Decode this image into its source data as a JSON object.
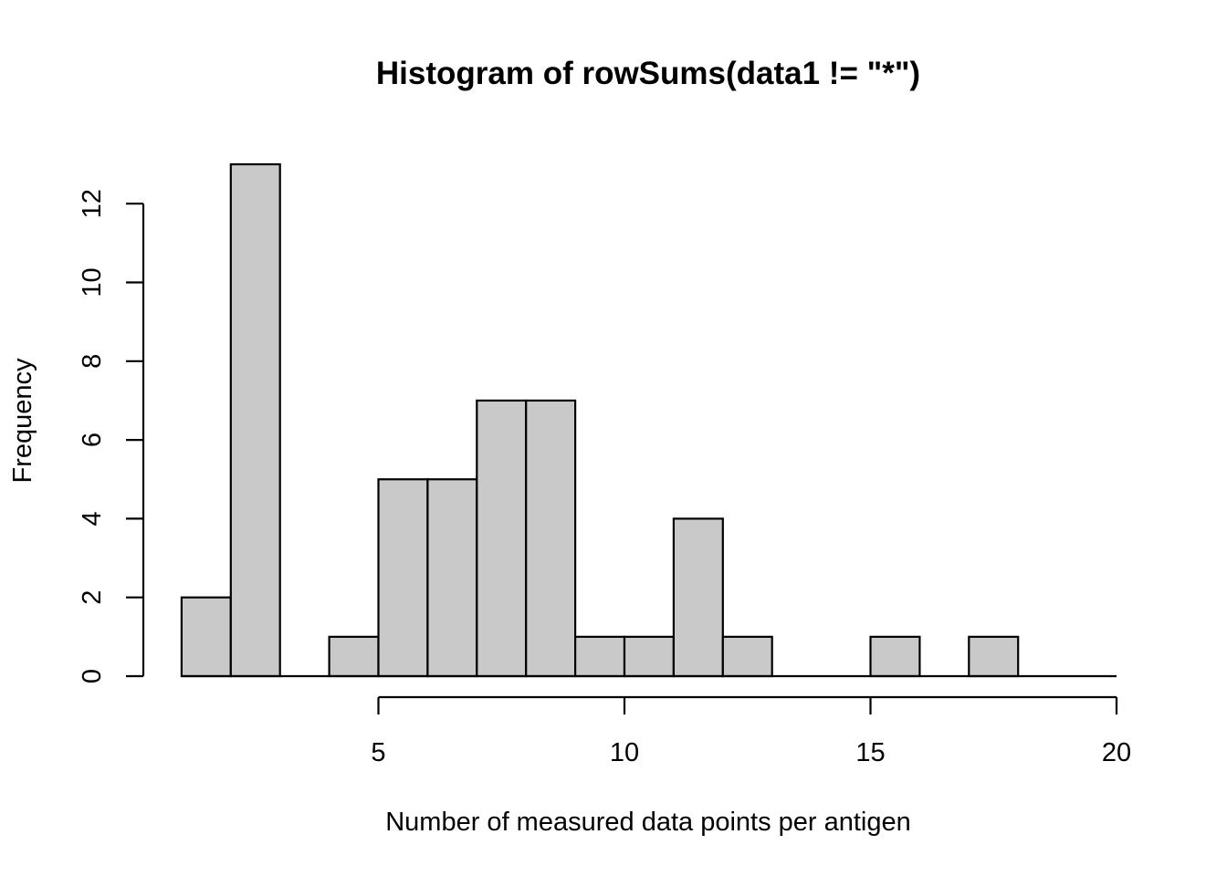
{
  "chart_data": {
    "type": "bar",
    "title": "Histogram of rowSums(data1 != \"*\")",
    "xlabel": "Number of measured data points per antigen",
    "ylabel": "Frequency",
    "bin_edges": [
      1,
      2,
      3,
      4,
      5,
      6,
      7,
      8,
      9,
      10,
      11,
      12,
      13,
      14,
      15,
      16,
      17,
      18,
      19,
      20
    ],
    "values": [
      2,
      13,
      0,
      1,
      5,
      5,
      7,
      7,
      1,
      1,
      4,
      1,
      0,
      0,
      1,
      0,
      1,
      0,
      0
    ],
    "x_ticks": [
      5,
      10,
      15,
      20
    ],
    "y_ticks": [
      0,
      2,
      4,
      6,
      8,
      10,
      12
    ],
    "xlim": [
      1,
      20
    ],
    "ylim": [
      0,
      13
    ],
    "grid": false,
    "colors": {
      "bar_fill": "#c9c9c9",
      "bar_stroke": "#000000"
    }
  }
}
